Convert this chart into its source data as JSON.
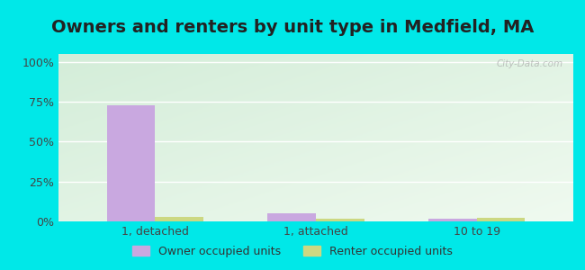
{
  "title": "Owners and renters by unit type in Medfield, MA",
  "categories": [
    "1, detached",
    "1, attached",
    "10 to 19"
  ],
  "owner_values": [
    73,
    5,
    1.5
  ],
  "renter_values": [
    3,
    1.5,
    2
  ],
  "owner_color": "#c9a8e0",
  "renter_color": "#ccd882",
  "yticks": [
    0,
    25,
    50,
    75,
    100
  ],
  "ytick_labels": [
    "0%",
    "25%",
    "50%",
    "75%",
    "100%"
  ],
  "ylim": [
    0,
    105
  ],
  "outer_color": "#00e8e8",
  "bar_width": 0.3,
  "legend_owner": "Owner occupied units",
  "legend_renter": "Renter occupied units",
  "title_fontsize": 14,
  "watermark": "City-Data.com"
}
